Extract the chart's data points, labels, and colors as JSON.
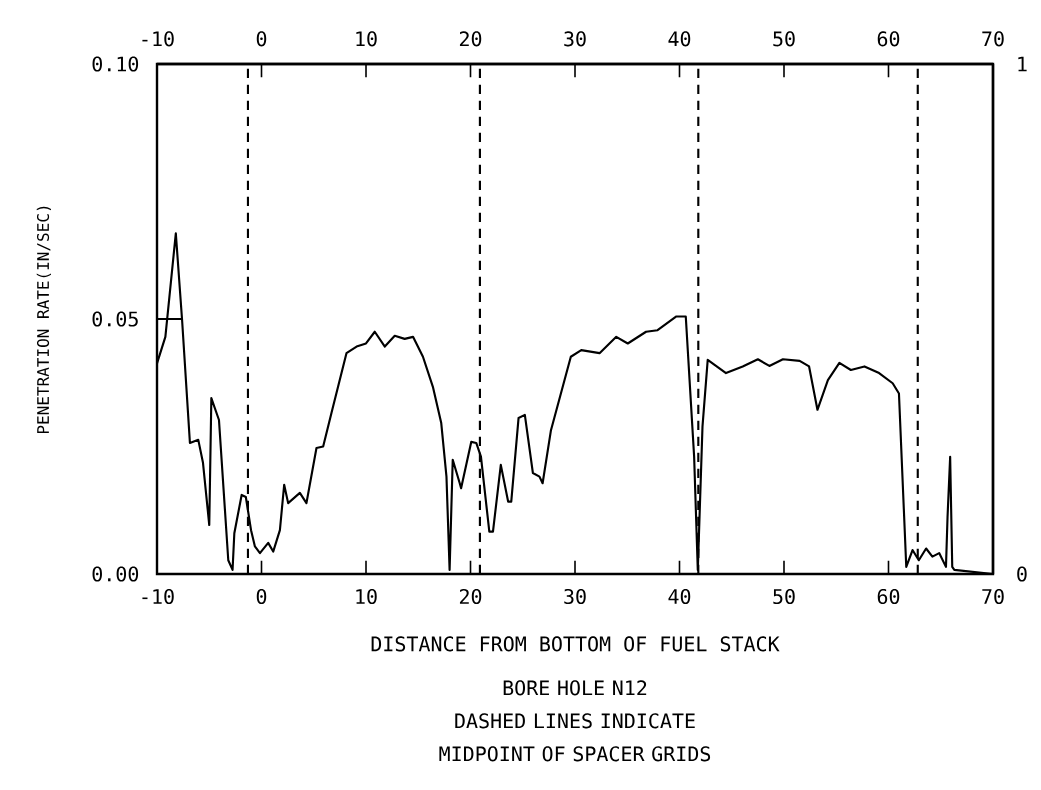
{
  "chart_data": {
    "type": "line",
    "xlabel": "DISTANCE FROM BOTTOM OF FUEL STACK",
    "ylabel": "PENETRATION RATE(IN/SEC)",
    "annotations": [
      "BORE HOLE N12",
      "DASHED LINES INDICATE MIDPOINT OF SPACER GRIDS"
    ],
    "series": [
      {
        "color": "#000000",
        "x": [
          -10,
          -9.2,
          -8.2,
          -7.6,
          -6.85,
          -6.05,
          -5.6,
          -5.0,
          -4.8,
          -4.07,
          -3.18,
          -2.77,
          -2.6,
          -1.9,
          -1.5,
          -1.0,
          -0.63,
          -0.15,
          0.64,
          1.12,
          1.76,
          2.17,
          2.55,
          3.67,
          4.3,
          5.26,
          5.9,
          6.7,
          8.13,
          9.1,
          10.0,
          10.84,
          11.8,
          12.75,
          13.7,
          14.5,
          15.45,
          16.4,
          17.2,
          17.7,
          18.0,
          18.3,
          18.97,
          19.1,
          20.07,
          20.55,
          21.0,
          21.8,
          22.15,
          22.9,
          23.6,
          23.9,
          24.6,
          25.2,
          25.97,
          26.6,
          26.9,
          27.7,
          29.6,
          30.6,
          32.35,
          33.95,
          35.05,
          36.8,
          37.9,
          39.7,
          40.6,
          41.4,
          41.75,
          42.2,
          42.7,
          44.45,
          46.05,
          47.5,
          48.6,
          49.9,
          51.5,
          52.4,
          53.2,
          54.2,
          55.3,
          56.4,
          57.7,
          59.1,
          60.4,
          61.0,
          61.7,
          62.3,
          62.9,
          63.6,
          64.2,
          64.85,
          65.5,
          65.65,
          65.9,
          66.1,
          66.3,
          70
        ],
        "values": [
          0.0413,
          0.0465,
          0.0668,
          0.0498,
          0.0257,
          0.0263,
          0.0218,
          0.0096,
          0.0345,
          0.0302,
          0.0027,
          0.0008,
          0.008,
          0.0155,
          0.0151,
          0.0086,
          0.0054,
          0.0041,
          0.0061,
          0.0044,
          0.0086,
          0.0175,
          0.0139,
          0.0159,
          0.0139,
          0.0247,
          0.025,
          0.0316,
          0.0433,
          0.0446,
          0.0452,
          0.0475,
          0.0446,
          0.0467,
          0.0461,
          0.0465,
          0.0426,
          0.0367,
          0.0296,
          0.0191,
          0.0008,
          0.0224,
          0.0178,
          0.0168,
          0.0259,
          0.0257,
          0.023,
          0.0083,
          0.0083,
          0.0214,
          0.0142,
          0.0142,
          0.0306,
          0.0312,
          0.0198,
          0.0191,
          0.0178,
          0.0282,
          0.0426,
          0.0439,
          0.0433,
          0.0465,
          0.0452,
          0.0475,
          0.0478,
          0.0505,
          0.0505,
          0.023,
          0.0008,
          0.0289,
          0.042,
          0.0394,
          0.0407,
          0.0421,
          0.0408,
          0.0421,
          0.0418,
          0.0407,
          0.0322,
          0.038,
          0.0414,
          0.04,
          0.0407,
          0.0394,
          0.0374,
          0.0354,
          0.0014,
          0.0047,
          0.0027,
          0.005,
          0.0034,
          0.0041,
          0.0014,
          0.0112,
          0.023,
          0.0014,
          0.0008,
          0
        ]
      },
      {
        "color": "#000000",
        "x": [
          -10,
          -7.7
        ],
        "values": [
          0.05,
          0.05
        ]
      }
    ],
    "xlim": [
      -10,
      70
    ],
    "xticks": [
      -10,
      0,
      10,
      20,
      30,
      40,
      50,
      60,
      70
    ],
    "x2lim": [
      -10,
      70
    ],
    "x2ticks": [
      -10,
      0,
      10,
      20,
      30,
      40,
      50,
      60,
      70
    ],
    "ylim": [
      0,
      0.1
    ],
    "yticks": [
      {
        "value": 0,
        "label": "0.00"
      },
      {
        "value": 0.05,
        "label": "0.05"
      },
      {
        "value": 0.1,
        "label": "0.10"
      }
    ],
    "y2lim": [
      0,
      1
    ],
    "y2ticks": [
      0,
      1
    ],
    "ref_lines": [
      {
        "axis": "x",
        "value": -1.3,
        "line_style": "dashed"
      },
      {
        "axis": "x",
        "value": 20.9,
        "line_style": "dashed"
      },
      {
        "axis": "x",
        "value": 41.8,
        "line_style": "dashed"
      },
      {
        "axis": "x",
        "value": 62.8,
        "line_style": "dashed"
      }
    ],
    "marker": "none",
    "line_style": "solid"
  }
}
